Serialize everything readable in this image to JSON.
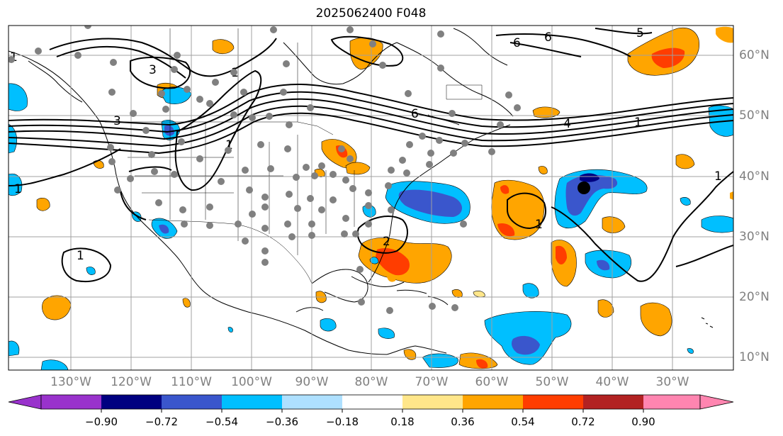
{
  "title": "2025062400 F048",
  "lon_labels": [
    "130°W",
    "120°W",
    "110°W",
    "100°W",
    "90°W",
    "80°W",
    "70°W",
    "60°W",
    "50°W",
    "40°W",
    "30°W"
  ],
  "lat_labels": [
    "60°N",
    "50°N",
    "40°N",
    "30°N",
    "20°N",
    "10°N"
  ],
  "colorbar": {
    "ticks": [
      "−0.90",
      "−0.72",
      "−0.54",
      "−0.36",
      "−0.18",
      "0.18",
      "0.36",
      "0.54",
      "0.72",
      "0.90"
    ],
    "colors": [
      "#9932cc",
      "#000080",
      "#3a56cc",
      "#00bfff",
      "#aee0ff",
      "#ffffff",
      "#ffe68a",
      "#ffa500",
      "#ff3d00",
      "#b22222",
      "#ff85b0"
    ]
  },
  "contour_labels": [
    "3",
    "1",
    "6",
    "4",
    "1",
    "1",
    "1",
    "1",
    "2",
    "3",
    "5",
    "6",
    "6",
    "1",
    "1",
    "1"
  ],
  "marked_point": "black-dot",
  "colors": {
    "negative": "#00bfff",
    "positive": "#ffa500",
    "station": "#808080"
  }
}
